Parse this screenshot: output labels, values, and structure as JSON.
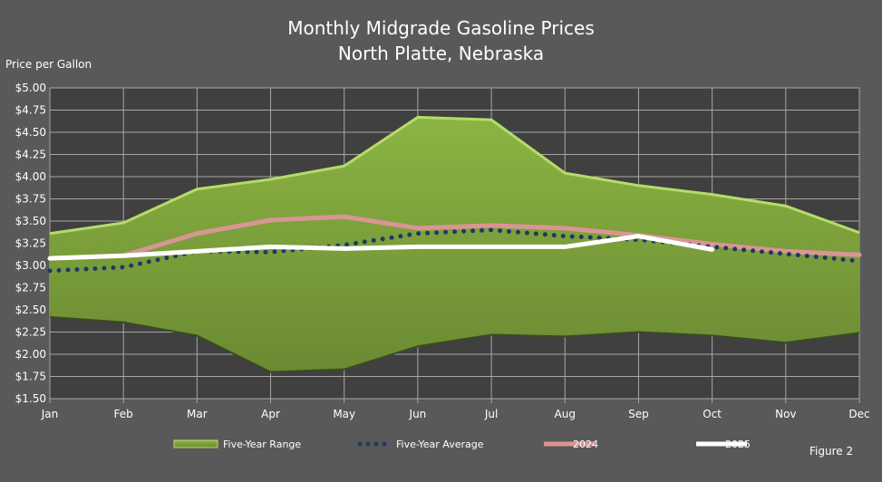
{
  "chart_data": {
    "type": "line",
    "title": "Monthly Midgrade Gasoline Prices",
    "subtitle": "North Platte, Nebraska",
    "ylabel": "Price per Gallon",
    "xlabel": "",
    "figure_label": "Figure 2",
    "ylim": [
      1.5,
      5.0
    ],
    "ytick_step": 0.25,
    "yticks": [
      "$1.50",
      "$1.75",
      "$2.00",
      "$2.25",
      "$2.50",
      "$2.75",
      "$3.00",
      "$3.25",
      "$3.50",
      "$3.75",
      "$4.00",
      "$4.25",
      "$4.50",
      "$4.75",
      "$5.00"
    ],
    "categories": [
      "Jan",
      "Feb",
      "Mar",
      "Apr",
      "May",
      "Jun",
      "Jul",
      "Aug",
      "Sep",
      "Oct",
      "Nov",
      "Dec"
    ],
    "grid": true,
    "legend_position": "bottom",
    "range": {
      "name": "Five-Year Range",
      "color": "#7ea33c",
      "high": [
        3.36,
        3.48,
        3.86,
        3.97,
        4.12,
        4.67,
        4.64,
        4.04,
        3.9,
        3.8,
        3.67,
        3.37
      ],
      "low": [
        2.42,
        2.36,
        2.21,
        1.8,
        1.83,
        2.09,
        2.22,
        2.2,
        2.25,
        2.21,
        2.13,
        2.24
      ]
    },
    "series": [
      {
        "name": "Five-Year Average",
        "color": "#1f3864",
        "style": "dotted",
        "values": [
          2.94,
          2.98,
          3.16,
          3.15,
          3.23,
          3.36,
          3.4,
          3.33,
          3.29,
          3.21,
          3.13,
          3.05
        ]
      },
      {
        "name": "2024",
        "color": "#d99594",
        "style": "solid",
        "values": [
          3.08,
          3.11,
          3.36,
          3.51,
          3.55,
          3.42,
          3.45,
          3.42,
          3.34,
          3.24,
          3.16,
          3.12
        ]
      },
      {
        "name": "2025",
        "color": "#ffffff",
        "style": "solid",
        "values": [
          3.08,
          3.11,
          3.16,
          3.21,
          3.19,
          3.21,
          3.21,
          3.21,
          3.33,
          3.18,
          null,
          null
        ]
      }
    ]
  }
}
